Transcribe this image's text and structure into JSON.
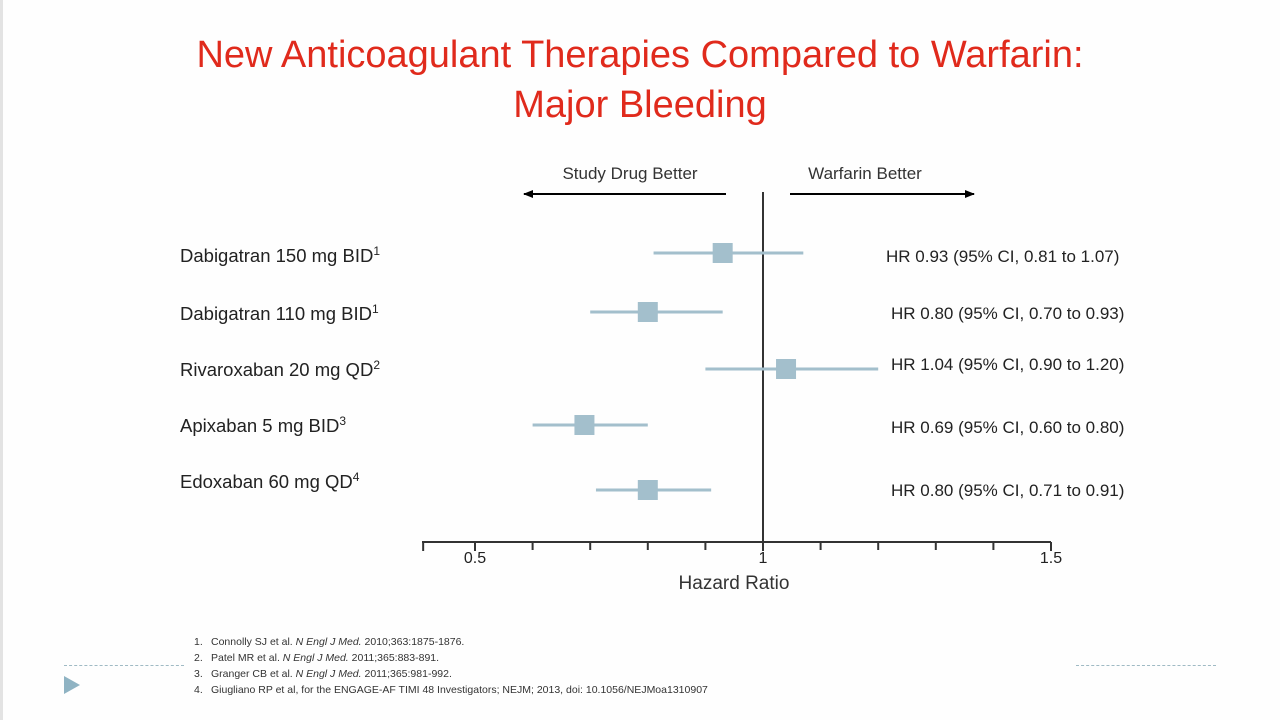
{
  "slide": {
    "title_line1": "New Anticoagulant Therapies Compared to Warfarin:",
    "title_line2": "Major Bleeding"
  },
  "colors": {
    "title": "#e02a1c",
    "marker": "#a3bfcc",
    "axis": "#333333"
  },
  "chart_data": {
    "type": "forest",
    "xlabel": "Hazard Ratio",
    "xlim": [
      0.41,
      1.5
    ],
    "ticks": [
      0.5,
      1,
      1.5
    ],
    "tick_labels": [
      "0.5",
      "1",
      "1.5"
    ],
    "minor_ticks": [
      0.6,
      0.7,
      0.8,
      0.9,
      1.1,
      1.2,
      1.3,
      1.4
    ],
    "reference_line": 1,
    "direction_left": "Study Drug Better",
    "direction_right": "Warfarin Better",
    "rows": [
      {
        "drug": "Dabigatran 150 mg BID",
        "sup": "1",
        "hr": 0.93,
        "lo": 0.81,
        "hi": 1.07,
        "text": "HR 0.93 (95% CI, 0.81 to 1.07)"
      },
      {
        "drug": "Dabigatran 110 mg BID",
        "sup": "1",
        "hr": 0.8,
        "lo": 0.7,
        "hi": 0.93,
        "text": "HR 0.80 (95% CI, 0.70 to 0.93)"
      },
      {
        "drug": "Rivaroxaban 20 mg QD",
        "sup": "2",
        "hr": 1.04,
        "lo": 0.9,
        "hi": 1.2,
        "text": "HR 1.04 (95% CI, 0.90 to 1.20)"
      },
      {
        "drug": "Apixaban 5 mg BID",
        "sup": "3",
        "hr": 0.69,
        "lo": 0.6,
        "hi": 0.8,
        "text": "HR 0.69 (95% CI, 0.60 to 0.80)"
      },
      {
        "drug": "Edoxaban 60 mg QD",
        "sup": "4",
        "hr": 0.8,
        "lo": 0.71,
        "hi": 0.91,
        "text": "HR 0.80 (95% CI, 0.71 to 0.91)"
      }
    ]
  },
  "references": [
    {
      "num": "1.",
      "pre": "Connolly SJ et al. ",
      "journal": "N Engl J Med.",
      "post": " 2010;363:1875-1876."
    },
    {
      "num": "2.",
      "pre": "Patel MR et al. ",
      "journal": "N Engl J Med.",
      "post": " 2011;365:883-891."
    },
    {
      "num": "3.",
      "pre": "Granger CB et al. ",
      "journal": "N Engl J Med.",
      "post": " 2011;365:981-992."
    },
    {
      "num": "4.",
      "pre": "Giugliano RP et al, for the ENGAGE-AF TIMI 48 Investigators; NEJM; 2013, doi: 10.1056/NEJMoa1310907",
      "journal": "",
      "post": ""
    }
  ]
}
